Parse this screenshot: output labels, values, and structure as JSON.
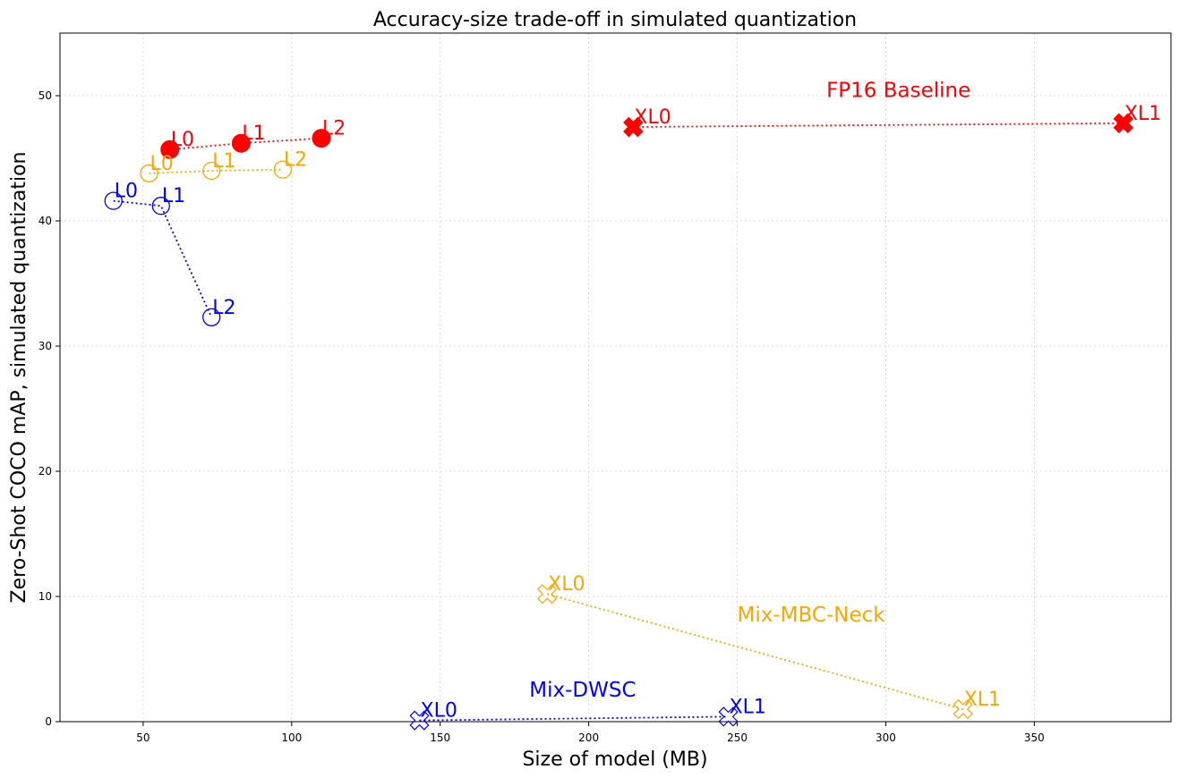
{
  "chart_data": {
    "type": "scatter",
    "title": "Accuracy-size trade-off in simulated quantization",
    "xlabel": "Size of model (MB)",
    "ylabel": "Zero-Shot COCO mAP, simulated quantization",
    "xlim": [
      22,
      396
    ],
    "ylim": [
      0,
      55
    ],
    "xticks": [
      50,
      100,
      150,
      200,
      250,
      300,
      350
    ],
    "yticks": [
      0,
      10,
      20,
      30,
      40,
      50
    ],
    "grid": true,
    "series": [
      {
        "name": "FP16 Baseline",
        "color": "#ff0000",
        "groups": [
          {
            "marker": "filled-circle",
            "points": [
              {
                "label": "L0",
                "x": 59,
                "y": 45.7
              },
              {
                "label": "L1",
                "x": 83,
                "y": 46.2
              },
              {
                "label": "L2",
                "x": 110,
                "y": 46.6
              }
            ]
          },
          {
            "marker": "filled-x",
            "points": [
              {
                "label": "XL0",
                "x": 215,
                "y": 47.5
              },
              {
                "label": "XL1",
                "x": 380,
                "y": 47.8
              }
            ]
          }
        ]
      },
      {
        "name": "Mix-MBC-Neck",
        "color": "#ffa500",
        "groups": [
          {
            "marker": "open-circle",
            "points": [
              {
                "label": "L0",
                "x": 52,
                "y": 43.8
              },
              {
                "label": "L1",
                "x": 73,
                "y": 44.0
              },
              {
                "label": "L2",
                "x": 97,
                "y": 44.1
              }
            ]
          },
          {
            "marker": "open-x",
            "points": [
              {
                "label": "XL0",
                "x": 186,
                "y": 10.2
              },
              {
                "label": "XL1",
                "x": 326,
                "y": 1.0
              }
            ]
          }
        ]
      },
      {
        "name": "Mix-DWSC",
        "color": "#0000ff",
        "groups": [
          {
            "marker": "open-circle",
            "points": [
              {
                "label": "L0",
                "x": 40,
                "y": 41.6
              },
              {
                "label": "L1",
                "x": 56,
                "y": 41.2
              },
              {
                "label": "L2",
                "x": 73,
                "y": 32.3
              }
            ]
          },
          {
            "marker": "open-x",
            "points": [
              {
                "label": "XL0",
                "x": 143,
                "y": 0.1
              },
              {
                "label": "XL1",
                "x": 247,
                "y": 0.4
              }
            ]
          }
        ]
      }
    ],
    "annotations": [
      {
        "text": "FP16 Baseline",
        "x": 280,
        "y": 49.9,
        "color": "#ff0000"
      },
      {
        "text": "Mix-MBC-Neck",
        "x": 250,
        "y": 8.0,
        "color": "#ffa500"
      },
      {
        "text": "Mix-DWSC",
        "x": 180,
        "y": 2.0,
        "color": "#0000ff"
      }
    ]
  }
}
